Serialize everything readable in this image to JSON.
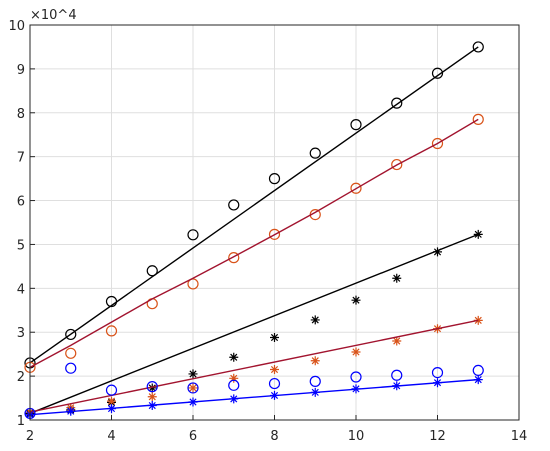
{
  "chart_data": {
    "type": "scatter",
    "title": "",
    "xlabel": "",
    "ylabel": "",
    "y_exponent_label": "×10^4",
    "y_scale_factor": 10000,
    "xlim": [
      2,
      14
    ],
    "ylim": [
      10000,
      100000
    ],
    "x_ticks": [
      2,
      4,
      6,
      8,
      10,
      12,
      14
    ],
    "y_ticks": [
      1,
      2,
      3,
      4,
      5,
      6,
      7,
      8,
      9,
      10
    ],
    "grid": true,
    "series": [
      {
        "color": "#000000",
        "marker": "circle",
        "x": [
          2,
          3,
          4,
          5,
          6,
          7,
          8,
          9,
          10,
          11,
          12,
          13
        ],
        "y": [
          23000,
          29500,
          37000,
          44000,
          52200,
          59000,
          65000,
          70800,
          77300,
          82200,
          89000,
          95000
        ]
      },
      {
        "color": "#000000",
        "marker": "line",
        "x": [
          2,
          13
        ],
        "y": [
          23000,
          95000
        ]
      },
      {
        "color": "#d95319",
        "marker": "circle",
        "x": [
          2,
          3,
          4,
          5,
          6,
          7,
          8,
          9,
          10,
          11,
          12,
          13
        ],
        "y": [
          22000,
          25200,
          30300,
          36500,
          41000,
          47000,
          52300,
          56800,
          62800,
          68200,
          73000,
          78500
        ]
      },
      {
        "color": "#a2142f",
        "marker": "line",
        "x": [
          2,
          3,
          4,
          5,
          6,
          7,
          8,
          9,
          10,
          11,
          12,
          13
        ],
        "y": [
          22000,
          27000,
          32300,
          37600,
          42300,
          47200,
          52200,
          57300,
          62700,
          68100,
          73000,
          78500
        ]
      },
      {
        "color": "#000000",
        "marker": "star",
        "x": [
          2,
          3,
          4,
          5,
          6,
          7,
          8,
          9,
          10,
          11,
          12,
          13
        ],
        "y": [
          11500,
          12300,
          14000,
          17300,
          20500,
          24300,
          28800,
          32800,
          37300,
          42300,
          48300,
          52300
        ]
      },
      {
        "color": "#000000",
        "marker": "line",
        "x": [
          2,
          13
        ],
        "y": [
          11500,
          52300
        ]
      },
      {
        "color": "#d95319",
        "marker": "star",
        "x": [
          2,
          3,
          4,
          5,
          6,
          7,
          8,
          9,
          10,
          11,
          12,
          13
        ],
        "y": [
          11800,
          12800,
          14300,
          15300,
          17300,
          19500,
          21500,
          23500,
          25500,
          28000,
          30800,
          32700
        ]
      },
      {
        "color": "#a2142f",
        "marker": "line",
        "x": [
          2,
          13
        ],
        "y": [
          11800,
          32700
        ]
      },
      {
        "color": "#0000ff",
        "marker": "circle",
        "x": [
          2,
          3,
          4,
          5,
          6,
          7,
          8,
          9,
          10,
          11,
          12,
          13
        ],
        "y": [
          11500,
          21800,
          16800,
          17600,
          17300,
          17900,
          18300,
          18800,
          19800,
          20200,
          20800,
          21300
        ]
      },
      {
        "color": "#0000ff",
        "marker": "star",
        "x": [
          2,
          3,
          4,
          5,
          6,
          7,
          8,
          9,
          10,
          11,
          12,
          13
        ],
        "y": [
          11200,
          12000,
          12600,
          13300,
          14100,
          14800,
          15600,
          16300,
          17100,
          17800,
          18500,
          19200
        ]
      },
      {
        "color": "#0000ff",
        "marker": "line",
        "x": [
          2,
          13
        ],
        "y": [
          11200,
          19200
        ]
      }
    ]
  }
}
